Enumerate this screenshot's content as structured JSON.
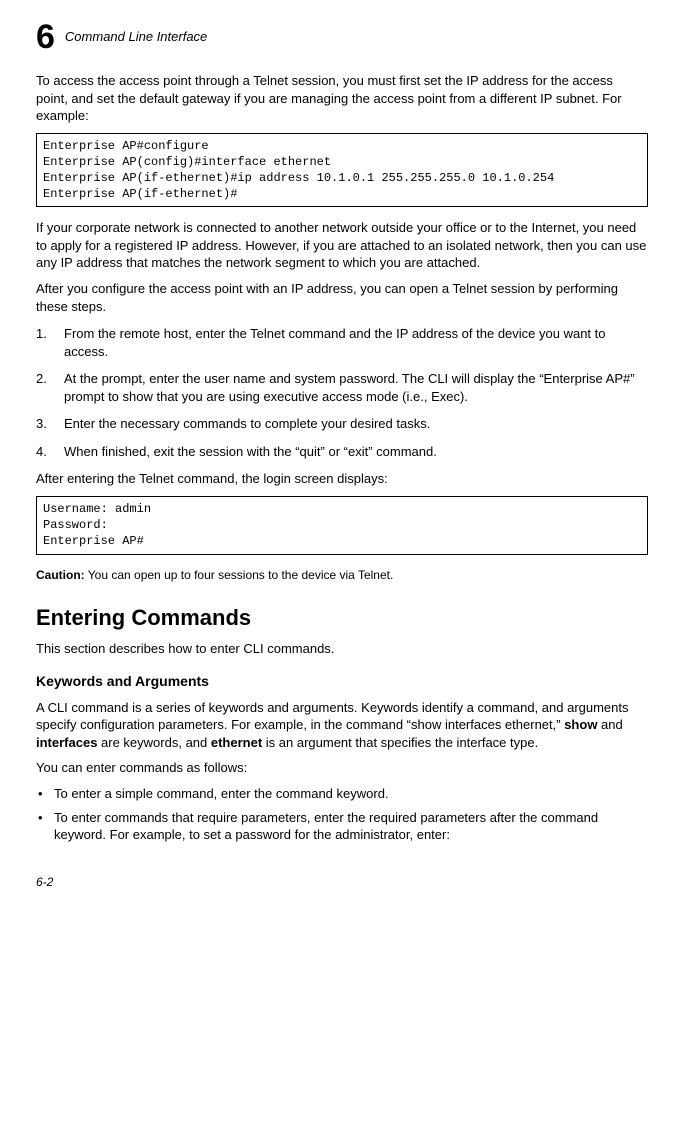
{
  "header": {
    "chapter_number": "6",
    "chapter_title": "Command Line Interface"
  },
  "intro_para": "To access the access point through a Telnet session, you must first set the IP address for the access point, and set the default gateway if you are managing the access point from a different IP subnet. For example:",
  "code1": {
    "l1": "Enterprise AP#configure",
    "l2": "Enterprise AP(config)#interface ethernet",
    "l3": "Enterprise AP(if-ethernet)#ip address 10.1.0.1 255.255.255.0 10.1.0.254",
    "l4": "Enterprise AP(if-ethernet)#"
  },
  "para2": "If your corporate network is connected to another network outside your office or to the Internet, you need to apply for a registered IP address. However, if you are attached to an isolated network, then you can use any IP address that matches the network segment to which you are attached.",
  "para3": "After you configure the access point with an IP address, you can open a Telnet session by performing these steps.",
  "steps": {
    "s1": "From the remote host, enter the Telnet command and the IP address of the device you want to access.",
    "s2": "At the prompt, enter the user name and system password. The CLI will display the “Enterprise AP#” prompt to show that you are using executive access mode (i.e., Exec).",
    "s3": "Enter the necessary commands to complete your desired tasks.",
    "s4": "When finished, exit the session with the “quit” or “exit” command."
  },
  "para4": "After entering the Telnet command, the login screen displays:",
  "code2": {
    "l1": "Username: admin",
    "l2": "Password: ",
    "l3": "Enterprise AP#"
  },
  "caution": {
    "label": "Caution:",
    "text": "  You can open up to four sessions to the device via Telnet."
  },
  "section2": {
    "heading": "Entering Commands",
    "intro": "This section describes how to enter CLI commands.",
    "sub_heading": "Keywords and Arguments",
    "sub_para_pre": "A CLI command is a series of keywords and arguments. Keywords identify a command, and arguments specify configuration parameters. For example, in the command “show interfaces ethernet,” ",
    "kw_show": "show",
    "sub_para_mid1": " and ",
    "kw_interfaces": "interfaces",
    "sub_para_mid2": " are keywords, and ",
    "kw_ethernet": "ethernet",
    "sub_para_post": " is an argument that specifies the interface type.",
    "sub_para2": "You can enter commands as follows:",
    "bullets": {
      "b1": "To enter a simple command, enter the command keyword.",
      "b2": "To enter commands that require parameters, enter the required parameters after the command keyword. For example, to set a password for the administrator, enter:"
    }
  },
  "footer": {
    "page": "6-2"
  }
}
